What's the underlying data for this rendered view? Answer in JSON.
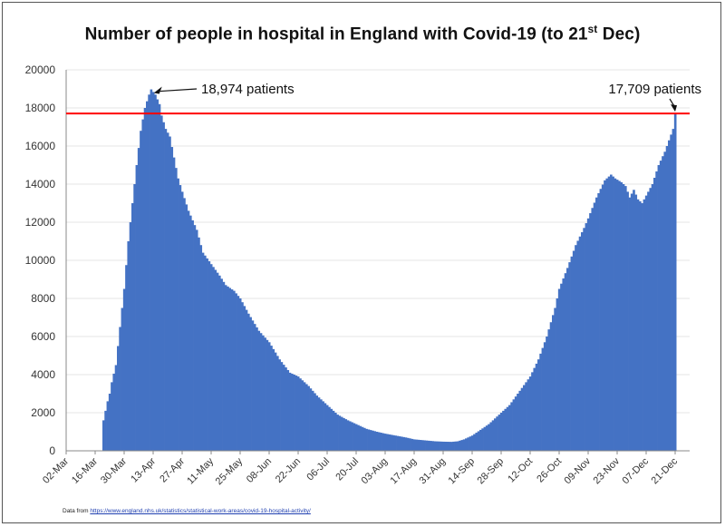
{
  "chart_data": {
    "type": "bar",
    "title_main": "Number of people in hospital in England with Covid-19 (to 21",
    "title_sup": "st",
    "title_tail": " Dec)",
    "xlabel": "",
    "ylabel": "",
    "ylim": [
      0,
      20000
    ],
    "yticks": [
      "0",
      "2000",
      "4000",
      "6000",
      "8000",
      "10000",
      "12000",
      "14000",
      "16000",
      "18000",
      "20000"
    ],
    "xlim": [
      "02-Mar",
      "28-Dec"
    ],
    "xticks": [
      "02-Mar",
      "16-Mar",
      "30-Mar",
      "13-Apr",
      "27-Apr",
      "11-May",
      "25-May",
      "08-Jun",
      "22-Jun",
      "06-Jul",
      "20-Jul",
      "03-Aug",
      "17-Aug",
      "31-Aug",
      "14-Sep",
      "28-Sep",
      "12-Oct",
      "26-Oct",
      "09-Nov",
      "23-Nov",
      "07-Dec",
      "21-Dec"
    ],
    "bar_color": "#4472c4",
    "reference_line": {
      "value": 17709,
      "color": "#ff0000"
    },
    "series": [
      {
        "first_date": "20-Mar",
        "last_date": "21-Dec",
        "anchor_points": [
          [
            "20-Mar",
            1600
          ],
          [
            "21-Mar",
            2100
          ],
          [
            "22-Mar",
            2600
          ],
          [
            "23-Mar",
            3000
          ],
          [
            "24-Mar",
            3600
          ],
          [
            "26-Mar",
            4500
          ],
          [
            "28-Mar",
            6500
          ],
          [
            "30-Mar",
            8500
          ],
          [
            "01-Apr",
            11000
          ],
          [
            "03-Apr",
            13000
          ],
          [
            "05-Apr",
            15000
          ],
          [
            "07-Apr",
            16800
          ],
          [
            "09-Apr",
            18000
          ],
          [
            "11-Apr",
            18700
          ],
          [
            "12-Apr",
            18974
          ],
          [
            "14-Apr",
            18700
          ],
          [
            "16-Apr",
            18200
          ],
          [
            "17-Apr",
            17600
          ],
          [
            "19-Apr",
            16900
          ],
          [
            "21-Apr",
            16500
          ],
          [
            "23-Apr",
            15400
          ],
          [
            "25-Apr",
            14300
          ],
          [
            "27-Apr",
            13600
          ],
          [
            "30-Apr",
            12600
          ],
          [
            "04-May",
            11600
          ],
          [
            "07-May",
            10400
          ],
          [
            "11-May",
            9800
          ],
          [
            "15-May",
            9200
          ],
          [
            "18-May",
            8700
          ],
          [
            "22-May",
            8400
          ],
          [
            "25-May",
            8000
          ],
          [
            "29-May",
            7200
          ],
          [
            "03-Jun",
            6300
          ],
          [
            "08-Jun",
            5700
          ],
          [
            "13-Jun",
            4800
          ],
          [
            "18-Jun",
            4100
          ],
          [
            "22-Jun",
            3900
          ],
          [
            "27-Jun",
            3400
          ],
          [
            "01-Jul",
            2900
          ],
          [
            "06-Jul",
            2400
          ],
          [
            "11-Jul",
            1900
          ],
          [
            "16-Jul",
            1600
          ],
          [
            "20-Jul",
            1400
          ],
          [
            "25-Jul",
            1150
          ],
          [
            "30-Jul",
            1000
          ],
          [
            "03-Aug",
            900
          ],
          [
            "08-Aug",
            800
          ],
          [
            "13-Aug",
            700
          ],
          [
            "17-Aug",
            600
          ],
          [
            "22-Aug",
            550
          ],
          [
            "27-Aug",
            500
          ],
          [
            "31-Aug",
            480
          ],
          [
            "04-Sep",
            470
          ],
          [
            "07-Sep",
            500
          ],
          [
            "10-Sep",
            600
          ],
          [
            "14-Sep",
            800
          ],
          [
            "18-Sep",
            1100
          ],
          [
            "22-Sep",
            1400
          ],
          [
            "26-Sep",
            1800
          ],
          [
            "28-Sep",
            2000
          ],
          [
            "02-Oct",
            2400
          ],
          [
            "06-Oct",
            3000
          ],
          [
            "12-Oct",
            3900
          ],
          [
            "16-Oct",
            4800
          ],
          [
            "20-Oct",
            6000
          ],
          [
            "24-Oct",
            7500
          ],
          [
            "26-Oct",
            8500
          ],
          [
            "30-Oct",
            9600
          ],
          [
            "03-Nov",
            10800
          ],
          [
            "07-Nov",
            11700
          ],
          [
            "09-Nov",
            12200
          ],
          [
            "13-Nov",
            13300
          ],
          [
            "17-Nov",
            14200
          ],
          [
            "20-Nov",
            14500
          ],
          [
            "22-Nov",
            14300
          ],
          [
            "25-Nov",
            14100
          ],
          [
            "27-Nov",
            13900
          ],
          [
            "29-Nov",
            13300
          ],
          [
            "01-Dec",
            13700
          ],
          [
            "03-Dec",
            13200
          ],
          [
            "05-Dec",
            13000
          ],
          [
            "07-Dec",
            13400
          ],
          [
            "10-Dec",
            14000
          ],
          [
            "13-Dec",
            15000
          ],
          [
            "16-Dec",
            15700
          ],
          [
            "18-Dec",
            16300
          ],
          [
            "20-Dec",
            16900
          ],
          [
            "21-Dec",
            17709
          ]
        ]
      }
    ],
    "annotations": [
      {
        "text": "18,974 patients",
        "point": "12-Apr",
        "value": 18974
      },
      {
        "text": "17,709 patients",
        "point": "21-Dec",
        "value": 17709
      }
    ]
  },
  "source": {
    "label": "Data from",
    "url": "https://www.england.nhs.uk/statistics/statistical-work-areas/covid-19-hospital-activity/"
  }
}
